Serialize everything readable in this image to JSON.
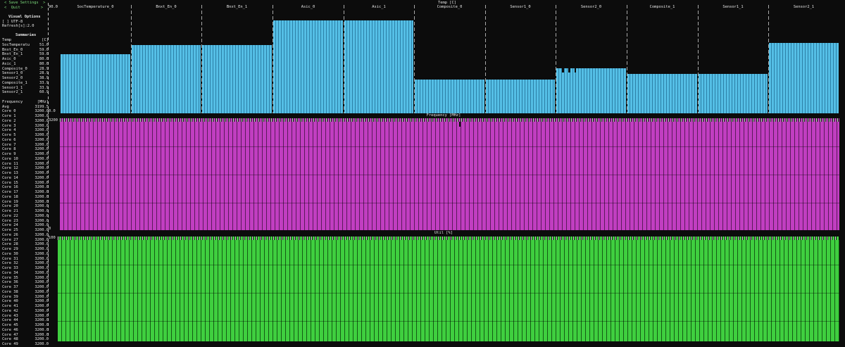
{
  "menu": {
    "save": "< Save Settings  >",
    "quit": "<  Quit         >"
  },
  "visual_options": {
    "title": "Visual Options",
    "utf8": "[ ] UTF-8",
    "refresh": "Refresh[s]:2.0"
  },
  "summaries": {
    "title": "Summaries",
    "temp_header": [
      "Temp",
      "[C]"
    ],
    "temps": [
      [
        "SocTemperatu",
        "51.0"
      ],
      [
        "Bnxt_En_0",
        "59.0"
      ],
      [
        "Bnxt_En_1",
        "59.0"
      ],
      [
        "Asic_0",
        "80.0"
      ],
      [
        "Asic_1",
        "80.0"
      ],
      [
        "Composite_0",
        "28.9"
      ],
      [
        "Sensor1_0",
        "28.9"
      ],
      [
        "Sensor2_0",
        "38.9"
      ],
      [
        "Composite_1",
        "33.9"
      ],
      [
        "Sensor1_1",
        "33.9"
      ],
      [
        "Sensor2_1",
        "60.9"
      ]
    ],
    "freq_header": [
      "Frequency",
      "[MHz]"
    ],
    "avg": [
      "Avg",
      "3199.5"
    ],
    "cores": [
      [
        "Core 0",
        "3200.0"
      ],
      [
        "Core 1",
        "3200.0"
      ],
      [
        "Core 2",
        "3200.0"
      ],
      [
        "Core 3",
        "3200.0"
      ],
      [
        "Core 4",
        "3200.0"
      ],
      [
        "Core 5",
        "3200.0"
      ],
      [
        "Core 6",
        "3200.0"
      ],
      [
        "Core 7",
        "3200.0"
      ],
      [
        "Core 8",
        "3200.0"
      ],
      [
        "Core 9",
        "3200.0"
      ],
      [
        "Core 10",
        "3200.0"
      ],
      [
        "Core 11",
        "3200.0"
      ],
      [
        "Core 12",
        "3200.0"
      ],
      [
        "Core 13",
        "3200.0"
      ],
      [
        "Core 14",
        "3200.0"
      ],
      [
        "Core 15",
        "3200.0"
      ],
      [
        "Core 16",
        "3200.0"
      ],
      [
        "Core 17",
        "3200.0"
      ],
      [
        "Core 18",
        "3200.0"
      ],
      [
        "Core 19",
        "3200.0"
      ],
      [
        "Core 20",
        "3200.0"
      ],
      [
        "Core 21",
        "3200.0"
      ],
      [
        "Core 22",
        "3200.0"
      ],
      [
        "Core 23",
        "3200.0"
      ],
      [
        "Core 24",
        "3200.0"
      ],
      [
        "Core 25",
        "3200.0"
      ],
      [
        "Core 26",
        "3200.0"
      ],
      [
        "Core 27",
        "3200.0"
      ],
      [
        "Core 28",
        "3200.0"
      ],
      [
        "Core 29",
        "3200.0"
      ],
      [
        "Core 30",
        "3200.0"
      ],
      [
        "Core 31",
        "3200.0"
      ],
      [
        "Core 32",
        "3200.0"
      ],
      [
        "Core 33",
        "3200.0"
      ],
      [
        "Core 34",
        "3200.0"
      ],
      [
        "Core 35",
        "3200.0"
      ],
      [
        "Core 36",
        "3200.0"
      ],
      [
        "Core 37",
        "3200.0"
      ],
      [
        "Core 38",
        "3200.0"
      ],
      [
        "Core 39",
        "3200.0"
      ],
      [
        "Core 40",
        "3200.0"
      ],
      [
        "Core 41",
        "3200.0"
      ],
      [
        "Core 42",
        "3200.0"
      ],
      [
        "Core 43",
        "3200.0"
      ],
      [
        "Core 44",
        "3200.0"
      ],
      [
        "Core 45",
        "3200.0"
      ],
      [
        "Core 46",
        "3200.0"
      ],
      [
        "Core 47",
        "3200.0"
      ],
      [
        "Core 48",
        "3200.0"
      ],
      [
        "Core 49",
        "3200.0"
      ]
    ]
  },
  "temp_chart": {
    "title": "Temp [C]",
    "ytop": "90.0",
    "ybottom": "0.0",
    "ymax": 90,
    "sensors": [
      {
        "name": "SocTemperature_0",
        "value": 51.0
      },
      {
        "name": "Bnxt_En_0",
        "value": 59.0
      },
      {
        "name": "Bnxt_En_1",
        "value": 59.0
      },
      {
        "name": "Asic_0",
        "value": 80.0
      },
      {
        "name": "Asic_1",
        "value": 80.0
      },
      {
        "name": "Composite_0",
        "value": 28.9
      },
      {
        "name": "Sensor1_0",
        "value": 28.9
      },
      {
        "name": "Sensor2_0",
        "value": 38.9
      },
      {
        "name": "Composite_1",
        "value": 33.9
      },
      {
        "name": "Sensor1_1",
        "value": 33.9
      },
      {
        "name": "Sensor2_1",
        "value": 60.9
      }
    ]
  },
  "freq_chart": {
    "title": "Frequency [MHz]",
    "ytop": "3200",
    "ybottom": "0"
  },
  "util_chart": {
    "title": "Util [%]",
    "ytop": "100"
  },
  "colors": {
    "temp": "#55bfe6",
    "freq": "#c13ec1",
    "util": "#3fcf3f",
    "menu": "#7ddc7d"
  }
}
